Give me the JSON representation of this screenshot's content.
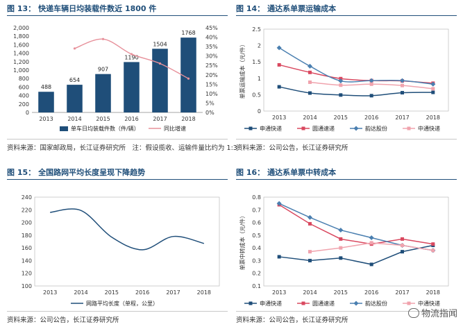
{
  "figures": [
    {
      "num": "图 13：",
      "title": "快递车辆日均装载件数近 1800 件",
      "source": "资料来源：国家邮政局，长江证券研究所　注：假设揽收、运输件量比约为 1:3"
    },
    {
      "num": "图 14：",
      "title": "通达系单票运输成本",
      "source": "资料来源：公司公告，长江证券研究所"
    },
    {
      "num": "图 15：",
      "title": "全国路网平均长度呈现下降趋势",
      "source": "资料来源：公司公告，长江证券研究所"
    },
    {
      "num": "图 16：",
      "title": "通达系单票中转成本",
      "source": "资料来源：公司公告，长江证券研究所"
    }
  ],
  "watermark": {
    "icon": "wechat-icon",
    "text": "物流指闻"
  },
  "chart_data": [
    {
      "type": "bar",
      "categories": [
        "2013",
        "2014",
        "2015",
        "2016",
        "2017",
        "2018"
      ],
      "series": [
        {
          "name": "单车日均装载件数（件/辆）",
          "type": "bar",
          "axis": "left",
          "color": "#1f4e79",
          "values": [
            488,
            654,
            907,
            1190,
            1504,
            1768
          ]
        },
        {
          "name": "同比增速",
          "type": "line",
          "axis": "right",
          "color": "#e7909a",
          "values": [
            null,
            34,
            39,
            31,
            26,
            18
          ]
        }
      ],
      "data_labels": [
        "488",
        "654",
        "907",
        "1190",
        "1504",
        "1768"
      ],
      "ylim": [
        0,
        2000
      ],
      "yticks": [
        "0",
        "200",
        "400",
        "600",
        "800",
        "1,000",
        "1,200",
        "1,400",
        "1,600",
        "1,800",
        "2,000"
      ],
      "y2lim": [
        0,
        45
      ],
      "y2ticks": [
        "0%",
        "5%",
        "10%",
        "15%",
        "20%",
        "25%",
        "30%",
        "35%",
        "40%",
        "45%"
      ],
      "legend": "bottom"
    },
    {
      "type": "line",
      "categories": [
        "2013",
        "2014",
        "2015",
        "2016",
        "2017",
        "2018"
      ],
      "ylabel": "单票运输成本（元/件）",
      "ylim": [
        0,
        2.5
      ],
      "yticks": [
        "0",
        "0.5",
        "1",
        "1.5",
        "2",
        "2.5"
      ],
      "series": [
        {
          "name": "申通快递",
          "color": "#1f4e79",
          "marker": "square",
          "values": [
            0.74,
            0.55,
            0.49,
            0.47,
            0.56,
            0.57
          ]
        },
        {
          "name": "圆通速递",
          "color": "#d9485f",
          "marker": "square",
          "values": [
            1.41,
            1.18,
            0.99,
            0.93,
            0.92,
            0.85
          ]
        },
        {
          "name": "韵达股份",
          "color": "#4a7fb0",
          "marker": "diamond",
          "values": [
            1.93,
            1.37,
            0.92,
            0.93,
            0.93,
            0.82
          ]
        },
        {
          "name": "中通快递",
          "color": "#f0a3ad",
          "marker": "square",
          "values": [
            null,
            0.88,
            0.79,
            0.82,
            0.78,
            0.68
          ]
        }
      ],
      "legend": "bottom"
    },
    {
      "type": "line",
      "categories": [
        "2013",
        "2014",
        "2015",
        "2016",
        "2017",
        "2018"
      ],
      "ylim": [
        100,
        240
      ],
      "yticks": [
        "100",
        "120",
        "140",
        "160",
        "180",
        "200",
        "220",
        "240"
      ],
      "series": [
        {
          "name": "网路平均长度（单程，公里）",
          "color": "#1f4e79",
          "marker": "none",
          "values": [
            216,
            219,
            177,
            157,
            178,
            167
          ]
        }
      ],
      "legend": "bottom"
    },
    {
      "type": "line",
      "categories": [
        "2013",
        "2014",
        "2015",
        "2016",
        "2017",
        "2018"
      ],
      "ylabel": "单票中转成本（元/件）",
      "ylim": [
        0.1,
        0.8
      ],
      "yticks": [
        "0.1",
        "0.2",
        "0.3",
        "0.4",
        "0.5",
        "0.6",
        "0.7",
        "0.8"
      ],
      "series": [
        {
          "name": "申通快递",
          "color": "#1f4e79",
          "marker": "square",
          "values": [
            0.33,
            0.3,
            0.32,
            0.27,
            0.37,
            0.42
          ]
        },
        {
          "name": "圆通速递",
          "color": "#d9485f",
          "marker": "square",
          "values": [
            0.74,
            0.59,
            0.47,
            0.43,
            0.47,
            0.43
          ]
        },
        {
          "name": "韵达股份",
          "color": "#4a7fb0",
          "marker": "diamond",
          "values": [
            0.75,
            0.64,
            0.54,
            0.48,
            0.42,
            0.38
          ]
        },
        {
          "name": "中通快递",
          "color": "#f0a3ad",
          "marker": "square",
          "values": [
            null,
            0.37,
            0.4,
            0.44,
            0.42,
            0.38
          ]
        }
      ],
      "legend": "bottom"
    }
  ]
}
